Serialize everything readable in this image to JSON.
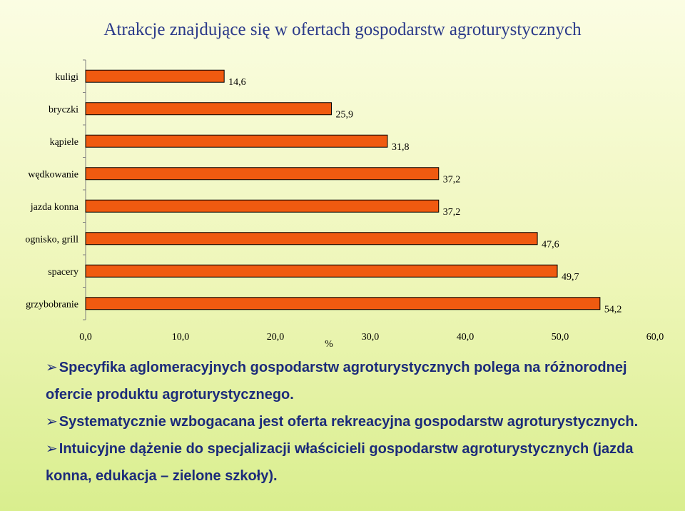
{
  "title": "Atrakcje znajdujące się w ofertach gospodarstw agroturystycznych",
  "chart_data": {
    "type": "bar",
    "orientation": "horizontal",
    "categories": [
      "kuligi",
      "bryczki",
      "kąpiele",
      "wędkowanie",
      "jazda konna",
      "ognisko, grill",
      "spacery",
      "grzybobranie"
    ],
    "values": [
      14.6,
      25.9,
      31.8,
      37.2,
      37.2,
      47.6,
      49.7,
      54.2
    ],
    "value_labels": [
      "14,6",
      "25,9",
      "31,8",
      "37,2",
      "37,2",
      "47,6",
      "49,7",
      "54,2"
    ],
    "xlim": [
      0,
      60
    ],
    "x_ticks": [
      "0,0",
      "10,0",
      "20,0",
      "30,0",
      "40,0",
      "50,0",
      "60,0"
    ],
    "xlabel": "%",
    "bar_color": "#f05a10",
    "bar_border": "#000000",
    "grid": false,
    "legend": "none"
  },
  "bullets": [
    {
      "arrow": "➢",
      "text": "Specyfika aglomeracyjnych gospodarstw agroturystycznych polega na różnorodnej ofercie produktu agroturystycznego."
    },
    {
      "arrow": "➢",
      "text": "Systematycznie wzbogacana jest oferta rekreacyjna gospodarstw agroturystycznych."
    },
    {
      "arrow": "➢",
      "text": "Intuicyjne dążenie do specjalizacji właścicieli gospodarstw agroturystycznych (jazda konna, edukacja – zielone szkoły)."
    }
  ]
}
